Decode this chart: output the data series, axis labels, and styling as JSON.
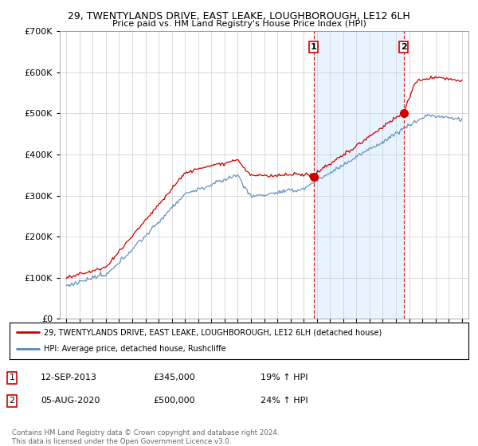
{
  "title_line1": "29, TWENTYLANDS DRIVE, EAST LEAKE, LOUGHBOROUGH, LE12 6LH",
  "title_line2": "Price paid vs. HM Land Registry's House Price Index (HPI)",
  "legend_label1": "29, TWENTYLANDS DRIVE, EAST LEAKE, LOUGHBOROUGH, LE12 6LH (detached house)",
  "legend_label2": "HPI: Average price, detached house, Rushcliffe",
  "line1_color": "#cc0000",
  "line2_color": "#5588bb",
  "marker1_date": 2013.75,
  "marker1_value": 345000,
  "marker2_date": 2020.58,
  "marker2_value": 500000,
  "shade_color": "#ddeeff",
  "vline_color": "#cc0000",
  "xmin": 1994.5,
  "xmax": 2025.5,
  "ymin": 0,
  "ymax": 700000,
  "background_color": "#ffffff",
  "plot_bg_color": "#ffffff",
  "footer": "Contains HM Land Registry data © Crown copyright and database right 2024.\nThis data is licensed under the Open Government Licence v3.0."
}
